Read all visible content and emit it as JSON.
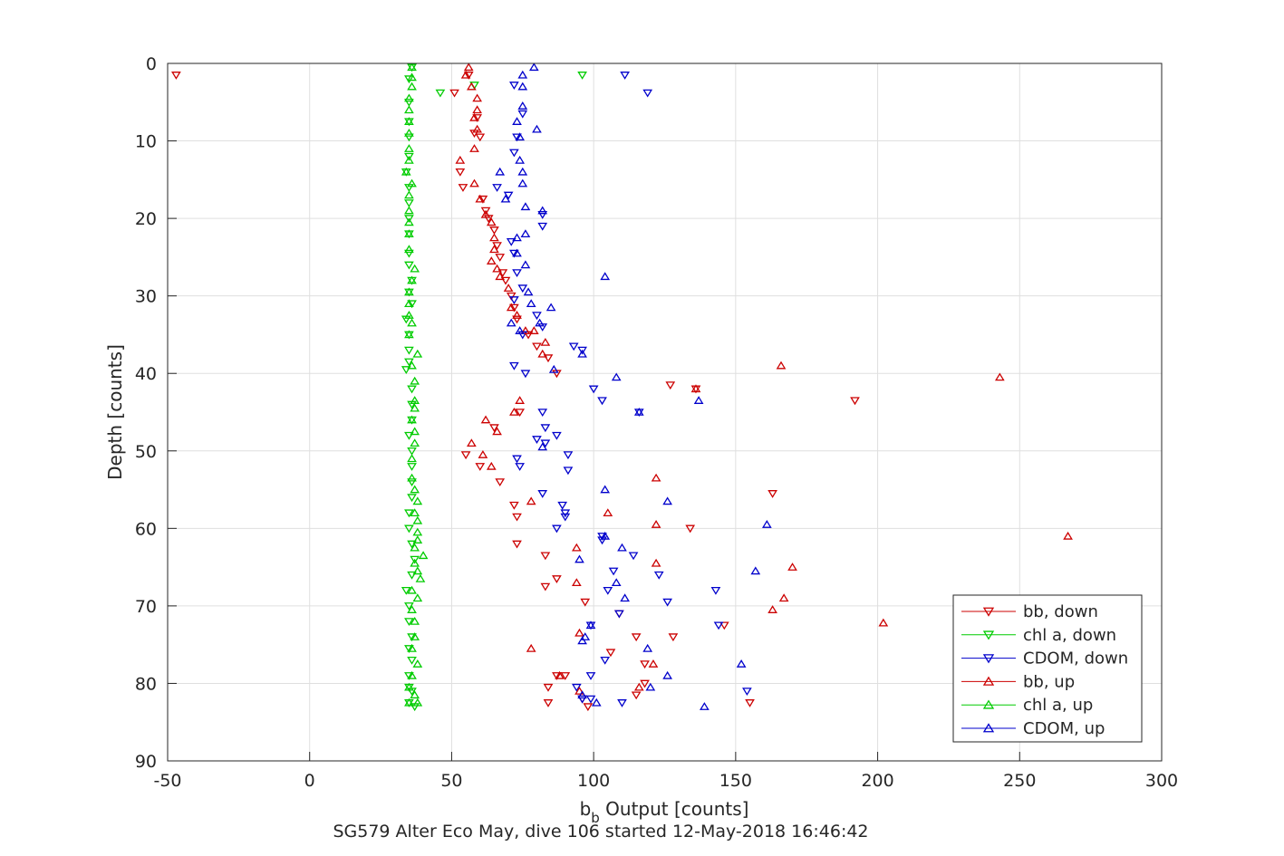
{
  "chart_data": {
    "type": "scatter",
    "xlabel_main": "b",
    "xlabel_sub": "b",
    "xlabel_rest": " Output [counts]",
    "ylabel": "Depth [counts]",
    "footer": "SG579 Alter Eco May, dive 106 started 12-May-2018 16:46:42",
    "xlim": [
      -50,
      300
    ],
    "ylim": [
      0,
      90
    ],
    "y_reversed": true,
    "grid": true,
    "legend_placement": "bottom-right",
    "x_ticks": [
      "-50",
      "0",
      "50",
      "100",
      "150",
      "200",
      "250",
      "300"
    ],
    "y_ticks": [
      "0",
      "10",
      "20",
      "30",
      "40",
      "50",
      "60",
      "70",
      "80",
      "90"
    ],
    "series": [
      {
        "name": "bb, down",
        "color": "#cc0000",
        "marker": "triangle-down",
        "points": [
          [
            -47,
            1.5
          ],
          [
            51,
            3.8
          ],
          [
            56,
            1.5
          ],
          [
            58,
            9
          ],
          [
            59,
            7
          ],
          [
            60,
            9.5
          ],
          [
            53,
            14
          ],
          [
            54,
            16
          ],
          [
            61,
            17.5
          ],
          [
            62,
            19
          ],
          [
            63,
            20
          ],
          [
            65,
            21.5
          ],
          [
            66,
            23.5
          ],
          [
            67,
            25
          ],
          [
            68,
            27
          ],
          [
            69,
            28
          ],
          [
            71,
            30
          ],
          [
            72,
            31.5
          ],
          [
            73,
            33
          ],
          [
            77,
            35
          ],
          [
            80,
            36.5
          ],
          [
            84,
            38
          ],
          [
            87,
            40
          ],
          [
            74,
            45
          ],
          [
            65,
            47
          ],
          [
            55,
            50.5
          ],
          [
            60,
            52
          ],
          [
            67,
            54
          ],
          [
            72,
            57
          ],
          [
            73,
            58.5
          ],
          [
            73,
            62
          ],
          [
            83,
            63.5
          ],
          [
            87,
            66.5
          ],
          [
            83,
            67.5
          ],
          [
            97,
            69.5
          ],
          [
            109,
            71
          ],
          [
            115,
            74
          ],
          [
            128,
            74
          ],
          [
            118,
            77.5
          ],
          [
            106,
            76
          ],
          [
            87,
            79
          ],
          [
            90,
            79
          ],
          [
            84,
            80.5
          ],
          [
            96,
            82
          ],
          [
            98,
            83
          ],
          [
            115,
            81.5
          ],
          [
            84,
            82.5
          ],
          [
            118,
            80
          ],
          [
            127,
            41.5
          ],
          [
            136,
            42
          ],
          [
            192,
            43.5
          ],
          [
            134,
            60
          ],
          [
            163,
            55.5
          ],
          [
            146,
            72.5
          ],
          [
            155,
            82.5
          ]
        ]
      },
      {
        "name": "chl a, down",
        "color": "#00cc00",
        "marker": "triangle-down",
        "points": [
          [
            96,
            1.5
          ],
          [
            58,
            2.8
          ],
          [
            46,
            3.8
          ],
          [
            36,
            0.5
          ],
          [
            35,
            2
          ],
          [
            35,
            5
          ],
          [
            35,
            7.5
          ],
          [
            35,
            9.5
          ],
          [
            35,
            12
          ],
          [
            34,
            14
          ],
          [
            35,
            16
          ],
          [
            35,
            18
          ],
          [
            35,
            20
          ],
          [
            35,
            22
          ],
          [
            35,
            24.5
          ],
          [
            35,
            26
          ],
          [
            36,
            28
          ],
          [
            35,
            29.5
          ],
          [
            36,
            31
          ],
          [
            34,
            33
          ],
          [
            35,
            35
          ],
          [
            35,
            37
          ],
          [
            35,
            38.5
          ],
          [
            34,
            39.5
          ],
          [
            36,
            42
          ],
          [
            36,
            44
          ],
          [
            36,
            46
          ],
          [
            35,
            48
          ],
          [
            36,
            50
          ],
          [
            36,
            52
          ],
          [
            36,
            54
          ],
          [
            36,
            56
          ],
          [
            35,
            58
          ],
          [
            35,
            60
          ],
          [
            36,
            62
          ],
          [
            37,
            64
          ],
          [
            36,
            66
          ],
          [
            34,
            68
          ],
          [
            35,
            70
          ],
          [
            35,
            72
          ],
          [
            36,
            74
          ],
          [
            35,
            75.5
          ],
          [
            36,
            77
          ],
          [
            35,
            79
          ],
          [
            35,
            80.5
          ],
          [
            36,
            81
          ],
          [
            35,
            82.5
          ],
          [
            37,
            83
          ]
        ]
      },
      {
        "name": "CDOM, down",
        "color": "#0000cc",
        "marker": "triangle-down",
        "points": [
          [
            111,
            1.5
          ],
          [
            119,
            3.8
          ],
          [
            72,
            2.8
          ],
          [
            75,
            6.5
          ],
          [
            73,
            9.5
          ],
          [
            72,
            11.5
          ],
          [
            66,
            16
          ],
          [
            70,
            17
          ],
          [
            82,
            19.5
          ],
          [
            82,
            21
          ],
          [
            71,
            23
          ],
          [
            72,
            24.5
          ],
          [
            73,
            27
          ],
          [
            75,
            29
          ],
          [
            72,
            30.5
          ],
          [
            80,
            32.5
          ],
          [
            82,
            34
          ],
          [
            75,
            35
          ],
          [
            93,
            36.5
          ],
          [
            96,
            37
          ],
          [
            76,
            40
          ],
          [
            72,
            39
          ],
          [
            100,
            42
          ],
          [
            103,
            43.5
          ],
          [
            116,
            45
          ],
          [
            82,
            45
          ],
          [
            83,
            47
          ],
          [
            80,
            48.5
          ],
          [
            87,
            48
          ],
          [
            83,
            49
          ],
          [
            91,
            50.5
          ],
          [
            73,
            51
          ],
          [
            74,
            52
          ],
          [
            91,
            52.5
          ],
          [
            82,
            55.5
          ],
          [
            89,
            57
          ],
          [
            90,
            58
          ],
          [
            87,
            60
          ],
          [
            90,
            58.5
          ],
          [
            103,
            61
          ],
          [
            103,
            61.5
          ],
          [
            114,
            63.5
          ],
          [
            107,
            65.5
          ],
          [
            123,
            66
          ],
          [
            105,
            68
          ],
          [
            126,
            69.5
          ],
          [
            109,
            71
          ],
          [
            99,
            72.5
          ],
          [
            143,
            68
          ],
          [
            144,
            72.5
          ],
          [
            104,
            77
          ],
          [
            99,
            79
          ],
          [
            94,
            80.5
          ],
          [
            99,
            82
          ],
          [
            110,
            82.5
          ],
          [
            96,
            82
          ],
          [
            154,
            81
          ]
        ]
      },
      {
        "name": "bb, up",
        "color": "#cc0000",
        "marker": "triangle-up",
        "points": [
          [
            56,
            0.5
          ],
          [
            55,
            1.5
          ],
          [
            57,
            3
          ],
          [
            59,
            4.5
          ],
          [
            59,
            6
          ],
          [
            58,
            7
          ],
          [
            59,
            8.5
          ],
          [
            58,
            11
          ],
          [
            53,
            12.5
          ],
          [
            58,
            15.5
          ],
          [
            60,
            17.5
          ],
          [
            62,
            19.5
          ],
          [
            64,
            20.5
          ],
          [
            65,
            22.5
          ],
          [
            65,
            24
          ],
          [
            64,
            25.5
          ],
          [
            66,
            26.5
          ],
          [
            67,
            27.5
          ],
          [
            70,
            29
          ],
          [
            71,
            31.5
          ],
          [
            73,
            32.5
          ],
          [
            76,
            34.5
          ],
          [
            79,
            34.5
          ],
          [
            83,
            36
          ],
          [
            82,
            37.5
          ],
          [
            166,
            39
          ],
          [
            243,
            40.5
          ],
          [
            136,
            42
          ],
          [
            74,
            43.5
          ],
          [
            72,
            45
          ],
          [
            62,
            46
          ],
          [
            66,
            47.5
          ],
          [
            57,
            49
          ],
          [
            61,
            50.5
          ],
          [
            64,
            52
          ],
          [
            122,
            53.5
          ],
          [
            78,
            56.5
          ],
          [
            105,
            58
          ],
          [
            122,
            59.5
          ],
          [
            267,
            61
          ],
          [
            94,
            62.5
          ],
          [
            122,
            64.5
          ],
          [
            170,
            65
          ],
          [
            94,
            67
          ],
          [
            167,
            69
          ],
          [
            163,
            70.5
          ],
          [
            202,
            72.2
          ],
          [
            95,
            73.5
          ],
          [
            78,
            75.5
          ],
          [
            121,
            77.5
          ],
          [
            88,
            79
          ],
          [
            95,
            81
          ],
          [
            116,
            80.5
          ]
        ]
      },
      {
        "name": "chl a, up",
        "color": "#00cc00",
        "marker": "triangle-up",
        "points": [
          [
            36,
            0.5
          ],
          [
            36,
            1.8
          ],
          [
            36,
            3
          ],
          [
            35,
            4.5
          ],
          [
            35,
            6
          ],
          [
            35,
            7.5
          ],
          [
            35,
            9
          ],
          [
            35,
            11
          ],
          [
            35,
            12.5
          ],
          [
            34,
            14
          ],
          [
            36,
            15.5
          ],
          [
            35,
            17
          ],
          [
            35,
            19
          ],
          [
            35,
            20.5
          ],
          [
            35,
            22
          ],
          [
            35,
            24
          ],
          [
            37,
            26.5
          ],
          [
            36,
            28
          ],
          [
            35,
            29.5
          ],
          [
            35,
            31
          ],
          [
            35,
            32.5
          ],
          [
            36,
            33.5
          ],
          [
            35,
            35
          ],
          [
            38,
            37.5
          ],
          [
            36,
            39
          ],
          [
            37,
            41
          ],
          [
            37,
            43.5
          ],
          [
            37,
            44.5
          ],
          [
            36,
            46
          ],
          [
            37,
            47.5
          ],
          [
            37,
            49
          ],
          [
            36,
            51
          ],
          [
            36,
            53.5
          ],
          [
            37,
            55
          ],
          [
            38,
            56.5
          ],
          [
            37,
            58
          ],
          [
            38,
            59
          ],
          [
            38,
            60.5
          ],
          [
            38,
            61.5
          ],
          [
            37,
            62.5
          ],
          [
            40,
            63.5
          ],
          [
            37,
            64.5
          ],
          [
            38,
            65.5
          ],
          [
            39,
            66.5
          ],
          [
            36,
            68
          ],
          [
            38,
            69
          ],
          [
            36,
            70.5
          ],
          [
            37,
            72
          ],
          [
            37,
            74
          ],
          [
            36,
            75.5
          ],
          [
            38,
            77.5
          ],
          [
            36,
            79
          ],
          [
            35,
            80.5
          ],
          [
            37,
            81.5
          ],
          [
            38,
            82.5
          ],
          [
            35,
            82.5
          ]
        ]
      },
      {
        "name": "CDOM, up",
        "color": "#0000cc",
        "marker": "triangle-up",
        "points": [
          [
            79,
            0.5
          ],
          [
            75,
            1.5
          ],
          [
            75,
            3
          ],
          [
            75,
            5.5
          ],
          [
            73,
            7.5
          ],
          [
            80,
            8.5
          ],
          [
            74,
            9.5
          ],
          [
            74,
            12.5
          ],
          [
            75,
            14
          ],
          [
            67,
            14
          ],
          [
            75,
            15.5
          ],
          [
            69,
            17.5
          ],
          [
            76,
            18.5
          ],
          [
            82,
            19
          ],
          [
            76,
            22
          ],
          [
            73,
            22.5
          ],
          [
            73,
            24.5
          ],
          [
            76,
            26
          ],
          [
            104,
            27.5
          ],
          [
            77,
            29.5
          ],
          [
            78,
            31
          ],
          [
            85,
            31.5
          ],
          [
            81,
            33.5
          ],
          [
            71,
            33.5
          ],
          [
            74,
            34.5
          ],
          [
            96,
            37.5
          ],
          [
            86,
            39.5
          ],
          [
            108,
            40.5
          ],
          [
            137,
            43.5
          ],
          [
            116,
            45
          ],
          [
            82,
            49.5
          ],
          [
            104,
            55
          ],
          [
            126,
            56.5
          ],
          [
            161,
            59.5
          ],
          [
            104,
            61
          ],
          [
            110,
            62.5
          ],
          [
            95,
            64
          ],
          [
            157,
            65.5
          ],
          [
            108,
            67
          ],
          [
            111,
            69
          ],
          [
            99,
            72.5
          ],
          [
            119,
            75.5
          ],
          [
            97,
            74
          ],
          [
            96,
            74.5
          ],
          [
            152,
            77.5
          ],
          [
            126,
            79
          ],
          [
            120,
            80.5
          ],
          [
            96,
            81.5
          ],
          [
            101,
            82.5
          ],
          [
            139,
            83
          ]
        ]
      }
    ]
  }
}
